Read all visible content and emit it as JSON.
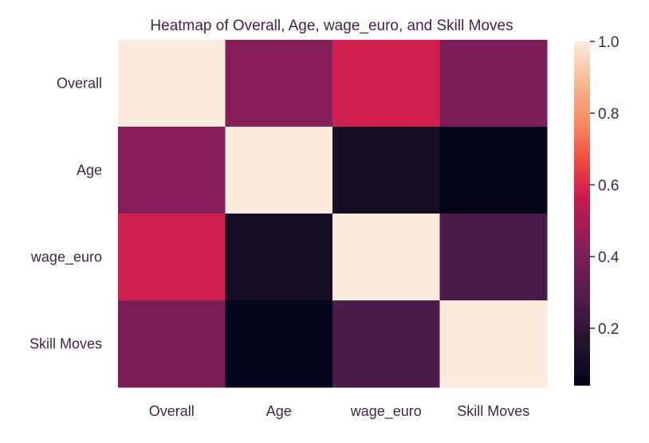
{
  "chart_data": {
    "type": "heatmap",
    "title": "Heatmap of Overall, Age, wage_euro, and Skill Moves",
    "x_labels": [
      "Overall",
      "Age",
      "wage_euro",
      "Skill Moves"
    ],
    "y_labels": [
      "Overall",
      "Age",
      "wage_euro",
      "Skill Moves"
    ],
    "values": [
      [
        1.0,
        0.43,
        0.58,
        0.4
      ],
      [
        0.43,
        1.0,
        0.11,
        0.04
      ],
      [
        0.58,
        0.11,
        1.0,
        0.27
      ],
      [
        0.4,
        0.04,
        0.27,
        1.0
      ]
    ],
    "colorbar": {
      "vmin": 0.04,
      "vmax": 1.0,
      "ticks": [
        0.2,
        0.4,
        0.6,
        0.8,
        1.0
      ],
      "tick_labels": [
        "0.2",
        "0.4",
        "0.6",
        "0.8",
        "1.0"
      ]
    },
    "colormap": "rocket",
    "grid": false
  }
}
